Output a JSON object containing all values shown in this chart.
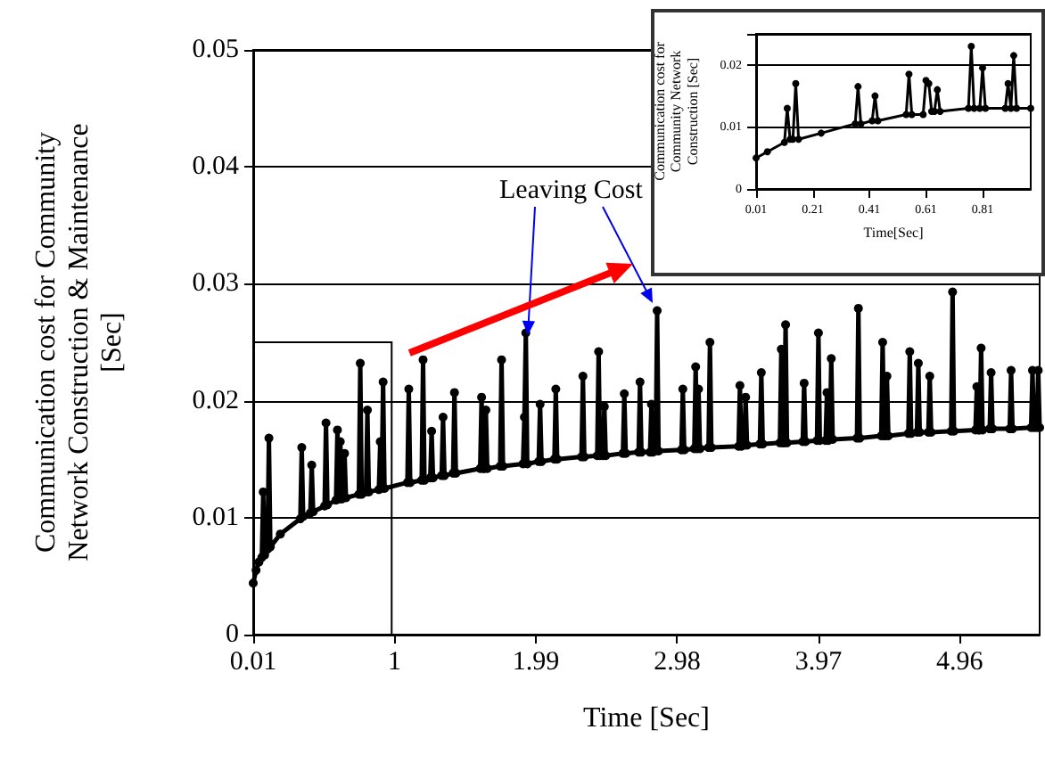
{
  "chart_data": [
    {
      "type": "line",
      "xlabel": "Time [Sec]",
      "ylabel": "Communication cost for Community Network Construction & Maintenance [Sec]",
      "annotations": [
        "Leaving Cost"
      ],
      "color": "#000000",
      "marker": "circle",
      "grid": "y",
      "xlim": [
        0.01,
        5.52
      ],
      "xticks": [
        0.01,
        1,
        1.99,
        2.98,
        3.97,
        4.96
      ],
      "ylim": [
        0,
        0.05
      ],
      "yticks": [
        0,
        0.01,
        0.02,
        0.03,
        0.04,
        0.05
      ],
      "x": [
        0.01,
        0.03,
        0.05,
        0.07,
        0.08,
        0.09,
        0.11,
        0.12,
        0.13,
        0.2,
        0.34,
        0.35,
        0.36,
        0.41,
        0.42,
        0.43,
        0.51,
        0.52,
        0.53,
        0.59,
        0.6,
        0.61,
        0.62,
        0.63,
        0.64,
        0.65,
        0.66,
        0.75,
        0.76,
        0.77,
        0.8,
        0.81,
        0.82,
        0.89,
        0.9,
        0.91,
        0.92,
        0.93,
        1.09,
        1.1,
        1.11,
        1.19,
        1.2,
        1.21,
        1.25,
        1.26,
        1.27,
        1.33,
        1.34,
        1.35,
        1.41,
        1.42,
        1.43,
        1.6,
        1.61,
        1.62,
        1.63,
        1.64,
        1.65,
        1.74,
        1.75,
        1.76,
        1.9,
        1.91,
        1.92,
        1.93,
        2.01,
        2.02,
        2.03,
        2.12,
        2.13,
        2.14,
        2.31,
        2.32,
        2.33,
        2.42,
        2.43,
        2.44,
        2.46,
        2.47,
        2.48,
        2.6,
        2.61,
        2.62,
        2.71,
        2.72,
        2.73,
        2.79,
        2.8,
        2.81,
        2.83,
        2.84,
        2.85,
        3.01,
        3.02,
        3.03,
        3.1,
        3.11,
        3.12,
        3.13,
        3.14,
        3.2,
        3.21,
        3.22,
        3.41,
        3.42,
        3.43,
        3.45,
        3.46,
        3.47,
        3.56,
        3.57,
        3.58,
        3.7,
        3.71,
        3.72,
        3.73,
        3.74,
        3.75,
        3.86,
        3.87,
        3.88,
        3.96,
        3.97,
        3.98,
        4.02,
        4.03,
        4.04,
        4.05,
        4.06,
        4.07,
        4.24,
        4.25,
        4.26,
        4.41,
        4.42,
        4.43,
        4.44,
        4.45,
        4.46,
        4.6,
        4.61,
        4.62,
        4.66,
        4.67,
        4.68,
        4.74,
        4.75,
        4.76,
        4.9,
        4.91,
        4.92,
        5.07,
        5.08,
        5.09,
        5.1,
        5.11,
        5.12,
        5.17,
        5.18,
        5.19,
        5.31,
        5.32,
        5.33,
        5.46,
        5.47,
        5.48,
        5.5,
        5.51,
        5.52
      ],
      "values": [
        0.0044,
        0.0055,
        0.0062,
        0.0066,
        0.0122,
        0.0068,
        0.0073,
        0.0168,
        0.0075,
        0.0086,
        0.0099,
        0.016,
        0.0101,
        0.0104,
        0.0145,
        0.0105,
        0.011,
        0.0181,
        0.0111,
        0.0115,
        0.0175,
        0.0116,
        0.0165,
        0.0116,
        0.0117,
        0.0155,
        0.0117,
        0.012,
        0.0232,
        0.012,
        0.0122,
        0.0192,
        0.0122,
        0.0124,
        0.0165,
        0.0125,
        0.0216,
        0.0125,
        0.013,
        0.021,
        0.013,
        0.0132,
        0.0235,
        0.0132,
        0.0134,
        0.0174,
        0.0134,
        0.0136,
        0.0186,
        0.0136,
        0.0138,
        0.0207,
        0.0138,
        0.0142,
        0.0203,
        0.0142,
        0.0142,
        0.0192,
        0.0142,
        0.0144,
        0.0235,
        0.0144,
        0.0146,
        0.0186,
        0.0258,
        0.0146,
        0.0148,
        0.0197,
        0.0148,
        0.015,
        0.021,
        0.015,
        0.0152,
        0.0221,
        0.0152,
        0.0153,
        0.0242,
        0.0153,
        0.0153,
        0.0195,
        0.0153,
        0.0155,
        0.0206,
        0.0155,
        0.0156,
        0.0216,
        0.0156,
        0.0156,
        0.0197,
        0.0156,
        0.0157,
        0.0277,
        0.0157,
        0.0158,
        0.021,
        0.0158,
        0.0159,
        0.0229,
        0.0159,
        0.021,
        0.0159,
        0.016,
        0.025,
        0.016,
        0.0161,
        0.0213,
        0.0161,
        0.0162,
        0.0203,
        0.0162,
        0.0163,
        0.0224,
        0.0163,
        0.0164,
        0.0244,
        0.0164,
        0.0164,
        0.0265,
        0.0164,
        0.0165,
        0.0215,
        0.0165,
        0.0166,
        0.0258,
        0.0166,
        0.0166,
        0.0207,
        0.0166,
        0.0167,
        0.0236,
        0.0167,
        0.0168,
        0.0279,
        0.0168,
        0.017,
        0.025,
        0.017,
        0.017,
        0.0221,
        0.017,
        0.0172,
        0.0242,
        0.0172,
        0.0173,
        0.0232,
        0.0173,
        0.0173,
        0.0221,
        0.0173,
        0.0174,
        0.0293,
        0.0174,
        0.0175,
        0.0212,
        0.0175,
        0.0175,
        0.0245,
        0.0175,
        0.0176,
        0.0224,
        0.0176,
        0.0176,
        0.0226,
        0.0176,
        0.0177,
        0.0226,
        0.0177,
        0.0177,
        0.0226,
        0.0177
      ]
    },
    {
      "type": "line",
      "xlabel": "Time[Sec]",
      "ylabel": "Communication cost for Community Network Construction [Sec]",
      "color": "#000000",
      "marker": "circle",
      "grid": "y",
      "xlim": [
        0.01,
        0.98
      ],
      "xticks": [
        0.01,
        0.21,
        0.41,
        0.61,
        0.81
      ],
      "ylim": [
        0,
        0.025
      ],
      "yticks": [
        0,
        0.01,
        0.02
      ],
      "x": [
        0.01,
        0.05,
        0.11,
        0.12,
        0.13,
        0.14,
        0.15,
        0.16,
        0.24,
        0.36,
        0.37,
        0.38,
        0.42,
        0.43,
        0.44,
        0.54,
        0.55,
        0.56,
        0.6,
        0.61,
        0.62,
        0.63,
        0.64,
        0.65,
        0.66,
        0.76,
        0.77,
        0.78,
        0.8,
        0.81,
        0.82,
        0.89,
        0.9,
        0.91,
        0.92,
        0.93,
        0.98
      ],
      "values": [
        0.005,
        0.006,
        0.0075,
        0.013,
        0.008,
        0.008,
        0.017,
        0.008,
        0.009,
        0.0105,
        0.0165,
        0.0105,
        0.011,
        0.015,
        0.011,
        0.012,
        0.0185,
        0.012,
        0.012,
        0.0175,
        0.017,
        0.0125,
        0.0125,
        0.016,
        0.0125,
        0.013,
        0.023,
        0.013,
        0.013,
        0.0195,
        0.013,
        0.013,
        0.017,
        0.013,
        0.0215,
        0.013,
        0.013
      ]
    }
  ]
}
